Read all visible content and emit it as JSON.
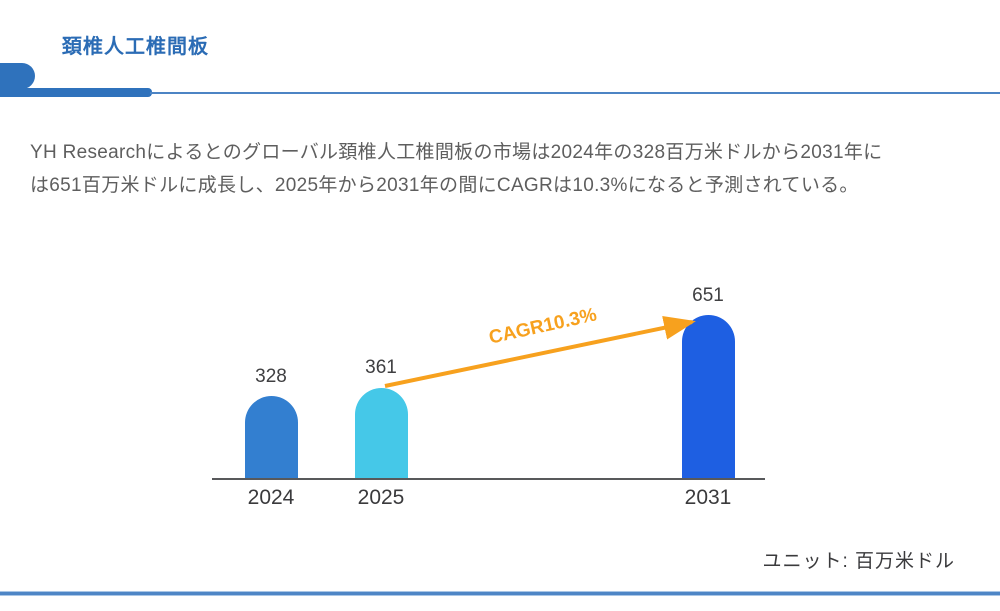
{
  "header": {
    "title": "頚椎人工椎間板",
    "accent_color": "#2F72BC"
  },
  "intro": {
    "lines": [
      "YH Researchによるとのグローバル頚椎人工椎間板の市場は2024年の328百万米ドルから2031年に",
      "は651百万米ドルに成長し、2025年から2031年の間にCAGRは10.3%になると予測されている。"
    ]
  },
  "chart_data": {
    "type": "bar",
    "title": "",
    "categories": [
      "2024",
      "2025",
      "2031"
    ],
    "values": [
      328,
      361,
      651
    ],
    "colors": [
      "#337FD0",
      "#45C8E8",
      "#1E5FE2"
    ],
    "annotation": "CAGR10.3%",
    "annotation_color": "#F7A11E",
    "xlabel": "",
    "ylabel": "",
    "unit": "百万米ドル",
    "ylim": [
      0,
      700
    ],
    "grid": false,
    "legend": "none",
    "axis_shown": "x-only"
  },
  "footer": {
    "unit_label": "ユニット: 百万米ドル",
    "divider_color": "#4E86C6"
  }
}
